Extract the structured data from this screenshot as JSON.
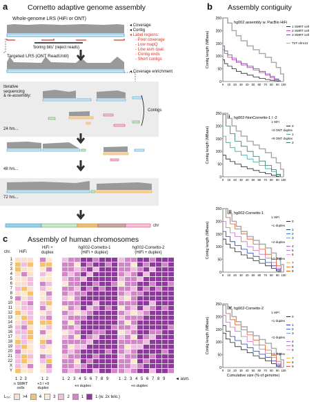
{
  "panel_a": {
    "letter": "a",
    "title": "Cornetto adaptive genome assembly",
    "wg_label": "Whole-genome LRS (HiFi or ONT)",
    "legend": {
      "coverage": "Coverage",
      "contig": "Contig",
      "label_regions": "Label regions:",
      "items": [
        "Poor coverage",
        "Low mapQ",
        "Low asm qual.",
        "Contig ends",
        "Short contigs"
      ],
      "enrichment": "Coverage enrichment"
    },
    "boring": "'boring bits' (reject reads)",
    "targeted": "Targeted LRS (ONT ReadUntil)",
    "iterative": "Iterative\nsequencing\n& re-assembly:",
    "contigs": "Contigs",
    "times": [
      "24 hrs...",
      "48 hrs...",
      "72 hrs..."
    ],
    "chr": "chr"
  },
  "panel_b": {
    "letter": "b",
    "title": "Assembly contiguity",
    "ylabel": "Contig length (MBase)",
    "xlabel": "Cumulative size (% of genome)"
  },
  "panel_c": {
    "letter": "c",
    "title": "Assembly of human chromosomes",
    "chr_label": "chr.",
    "col_headers": [
      "HiFi",
      "HiFi +\nduplex",
      "hg002-Cornetto-1\n(HiFi + duplex)",
      "hg002-Cornetto-2\n(HiFi + duplex)"
    ],
    "rows": [
      "1",
      "2",
      "3",
      "4",
      "5",
      "6",
      "7",
      "8",
      "9",
      "10",
      "11",
      "12",
      "13",
      "14",
      "15",
      "16",
      "17",
      "18",
      "19",
      "20",
      "21",
      "22",
      "X",
      "Y"
    ],
    "asm": "◄ asm.",
    "nsmrt": "n SMRT\ncells",
    "plus_duplex": "+3 / +9\nduplex",
    "n_duplex": "+n duplex",
    "legend_label": "L₅₀:",
    "legend": [
      ">4",
      "4",
      "3",
      "2",
      "1",
      "1 (w. 2x telo.)"
    ],
    "legend_colors": [
      "#fbe0cf",
      "#f7c26a",
      "#fce9d0",
      "#f2bde0",
      "#d286c8",
      "#8e3a9c"
    ]
  },
  "chart_data": [
    {
      "type": "line",
      "title": "hg002 assembly w. PacBio HiFi",
      "panel": "i",
      "xlabel": "Cumulative size (% of genome)",
      "ylabel": "Contig length (MBase)",
      "xlim": [
        0,
        100
      ],
      "ylim": [
        0,
        250
      ],
      "legend_position": "right",
      "series": [
        {
          "name": "1 SMRT cell",
          "color": "#222222",
          "x": [
            0,
            3,
            8,
            15,
            22,
            30,
            40,
            50,
            60,
            70,
            78,
            85,
            90,
            92
          ],
          "y": [
            85,
            70,
            60,
            50,
            40,
            32,
            25,
            18,
            12,
            8,
            5,
            3,
            1,
            0
          ]
        },
        {
          "name": "2 SMRT cell",
          "color": "#c73aa0",
          "x": [
            0,
            3,
            8,
            15,
            22,
            30,
            40,
            50,
            60,
            70,
            78,
            85,
            92,
            95
          ],
          "y": [
            125,
            110,
            95,
            85,
            75,
            65,
            55,
            45,
            35,
            25,
            15,
            8,
            2,
            0
          ]
        },
        {
          "name": "3 SMRT cell",
          "color": "#6a3fa6",
          "x": [
            0,
            3,
            8,
            15,
            22,
            30,
            40,
            50,
            60,
            70,
            78,
            85,
            92,
            95
          ],
          "y": [
            140,
            120,
            105,
            92,
            80,
            70,
            60,
            50,
            40,
            30,
            20,
            10,
            3,
            0
          ]
        },
        {
          "name": "T2T-chm13",
          "color": "#aaaaaa",
          "x": [
            0,
            8,
            15,
            22,
            30,
            40,
            50,
            60,
            70,
            80,
            88,
            95,
            100
          ],
          "y": [
            250,
            230,
            200,
            180,
            160,
            140,
            125,
            110,
            95,
            75,
            55,
            30,
            0
          ]
        }
      ]
    },
    {
      "type": "line",
      "title": "hg002-NonCornetto-1 / -2",
      "panel": "ii",
      "xlim": [
        0,
        100
      ],
      "ylim": [
        0,
        250
      ],
      "legend_position": "right",
      "series": [
        {
          "name": "0",
          "color": "#222222",
          "x": [
            0,
            5,
            12,
            20,
            30,
            40,
            50,
            60,
            70,
            80,
            88,
            92
          ],
          "y": [
            85,
            70,
            60,
            50,
            40,
            32,
            25,
            18,
            12,
            6,
            2,
            0
          ]
        },
        {
          "name": "1",
          "color": "#3aa8a0",
          "x": [
            0,
            5,
            12,
            20,
            30,
            40,
            50,
            60,
            70,
            80,
            88,
            94
          ],
          "y": [
            160,
            135,
            115,
            100,
            85,
            70,
            58,
            45,
            32,
            20,
            8,
            0
          ]
        },
        {
          "name": "2",
          "color": "#2e7a5a",
          "x": [
            0,
            5,
            12,
            20,
            30,
            40,
            50,
            60,
            70,
            80,
            88,
            95
          ],
          "y": [
            245,
            200,
            170,
            140,
            120,
            100,
            80,
            62,
            45,
            28,
            10,
            0
          ]
        },
        {
          "name": "T2T-chm13",
          "color": "#aaaaaa",
          "x": [
            0,
            8,
            15,
            22,
            30,
            40,
            50,
            60,
            70,
            80,
            88,
            95,
            100
          ],
          "y": [
            250,
            230,
            200,
            180,
            160,
            140,
            125,
            110,
            95,
            75,
            55,
            30,
            0
          ]
        }
      ]
    },
    {
      "type": "line",
      "title": "hg002-Cornetto-1",
      "panel": "iii",
      "xlim": [
        0,
        100
      ],
      "ylim": [
        0,
        250
      ],
      "legend_position": "right",
      "series": [
        {
          "name": "0",
          "color": "#222222",
          "x": [
            0,
            5,
            12,
            20,
            30,
            40,
            50,
            60,
            70,
            80,
            88,
            92
          ],
          "y": [
            130,
            110,
            95,
            80,
            68,
            55,
            45,
            35,
            25,
            15,
            5,
            0
          ]
        },
        {
          "name": "1",
          "color": "#1f3fa0",
          "x": [
            0,
            5,
            12,
            20,
            30,
            40,
            50,
            60,
            70,
            80,
            88,
            94
          ],
          "y": [
            160,
            140,
            120,
            105,
            90,
            75,
            62,
            50,
            38,
            25,
            10,
            0
          ]
        },
        {
          "name": "5",
          "color": "#c56fc0",
          "x": [
            0,
            5,
            12,
            20,
            30,
            40,
            50,
            60,
            70,
            80,
            88,
            95
          ],
          "y": [
            200,
            175,
            155,
            140,
            120,
            100,
            85,
            70,
            55,
            38,
            15,
            0
          ]
        },
        {
          "name": "9",
          "color": "#e8531e",
          "x": [
            0,
            5,
            12,
            20,
            30,
            40,
            50,
            60,
            70,
            80,
            88,
            96
          ],
          "y": [
            250,
            215,
            190,
            170,
            150,
            130,
            110,
            90,
            70,
            50,
            25,
            0
          ]
        },
        {
          "name": "T2T-chm13",
          "color": "#aaaaaa",
          "x": [
            0,
            8,
            15,
            22,
            30,
            40,
            50,
            60,
            70,
            80,
            88,
            95,
            100
          ],
          "y": [
            250,
            230,
            200,
            180,
            160,
            140,
            125,
            110,
            95,
            75,
            55,
            30,
            0
          ]
        }
      ]
    },
    {
      "type": "line",
      "title": "hg002-Cornetto-2",
      "panel": "iv",
      "xlim": [
        0,
        100
      ],
      "ylim": [
        0,
        250
      ],
      "legend_position": "right",
      "series": [
        {
          "name": "0",
          "color": "#222222",
          "x": [
            0,
            5,
            12,
            20,
            30,
            40,
            50,
            60,
            70,
            80,
            88,
            92
          ],
          "y": [
            135,
            112,
            98,
            82,
            70,
            58,
            46,
            36,
            26,
            15,
            5,
            0
          ]
        },
        {
          "name": "1",
          "color": "#1f3fa0",
          "x": [
            0,
            5,
            12,
            20,
            30,
            40,
            50,
            60,
            70,
            80,
            88,
            94
          ],
          "y": [
            165,
            142,
            122,
            106,
            92,
            78,
            64,
            52,
            40,
            26,
            10,
            0
          ]
        },
        {
          "name": "5",
          "color": "#c56fc0",
          "x": [
            0,
            5,
            12,
            20,
            30,
            40,
            50,
            60,
            70,
            80,
            88,
            95
          ],
          "y": [
            205,
            178,
            158,
            142,
            122,
            102,
            88,
            72,
            56,
            40,
            16,
            0
          ]
        },
        {
          "name": "9",
          "color": "#e8531e",
          "x": [
            0,
            5,
            12,
            20,
            30,
            40,
            50,
            60,
            70,
            80,
            88,
            96
          ],
          "y": [
            245,
            212,
            188,
            168,
            148,
            128,
            108,
            88,
            68,
            48,
            24,
            0
          ]
        },
        {
          "name": "T2T-chm13",
          "color": "#aaaaaa",
          "x": [
            0,
            8,
            15,
            22,
            30,
            40,
            50,
            60,
            70,
            80,
            88,
            95,
            100
          ],
          "y": [
            250,
            230,
            200,
            180,
            160,
            140,
            125,
            110,
            95,
            75,
            55,
            30,
            0
          ]
        }
      ]
    }
  ],
  "chart_text": [
    {
      "roman": "i",
      "legend": [
        {
          "t": "1 SMRT cell",
          "c": "#222222"
        },
        {
          "t": "2 SMRT cell",
          "c": "#c73aa0"
        },
        {
          "t": "3 SMRT cell",
          "c": "#6a3fa6"
        },
        {
          "t": "",
          "c": ""
        },
        {
          "t": "T2T-chm13",
          "c": "#aaaaaa"
        }
      ]
    },
    {
      "roman": "ii",
      "legend": [
        {
          "t": "1 HiFi",
          "c": ""
        },
        {
          "t": "0",
          "c": "#222222"
        },
        {
          "t": "+3 ONT duplex",
          "c": ""
        },
        {
          "t": "1",
          "c": "#3aa8a0"
        },
        {
          "t": "+9 ONT duplex",
          "c": ""
        },
        {
          "t": "2",
          "c": "#2e7a5a"
        }
      ]
    },
    {
      "roman": "iii",
      "legend": [
        {
          "t": "1 HiFi",
          "c": ""
        },
        {
          "t": "0",
          "c": "#222222"
        },
        {
          "t": "+1 duplex",
          "c": ""
        },
        {
          "t": "1",
          "c": "#1f3fa0"
        },
        {
          "t": "2",
          "c": "#3a6bd0"
        },
        {
          "t": "3",
          "c": "#6aa3e0"
        },
        {
          "t": "+2 duplex",
          "c": ""
        },
        {
          "t": "4",
          "c": "#a06ed6"
        },
        {
          "t": "5",
          "c": "#c56fc0"
        },
        {
          "t": "6",
          "c": "#e2a6dc"
        },
        {
          "t": "+3 duplex",
          "c": ""
        },
        {
          "t": "7",
          "c": "#f5b85a"
        },
        {
          "t": "8",
          "c": "#ec8a2e"
        },
        {
          "t": "9",
          "c": "#e8531e"
        }
      ]
    },
    {
      "roman": "iv",
      "legend": [
        {
          "t": "1 HiFi",
          "c": ""
        },
        {
          "t": "0",
          "c": "#222222"
        },
        {
          "t": "+1 duplex",
          "c": ""
        },
        {
          "t": "1",
          "c": "#1f3fa0"
        },
        {
          "t": "2",
          "c": "#3a6bd0"
        },
        {
          "t": "3",
          "c": "#6aa3e0"
        },
        {
          "t": "+2 duplex",
          "c": ""
        },
        {
          "t": "4",
          "c": "#a06ed6"
        },
        {
          "t": "5",
          "c": "#c56fc0"
        },
        {
          "t": "6",
          "c": "#e2a6dc"
        },
        {
          "t": "+3 duplex",
          "c": ""
        },
        {
          "t": "7",
          "c": "#f5b85a"
        },
        {
          "t": "8",
          "c": "#ec8a2e"
        },
        {
          "t": "9",
          "c": "#e8531e"
        }
      ]
    }
  ],
  "yticks": [
    "250",
    "200",
    "150",
    "100",
    "50",
    "0"
  ],
  "xticks": [
    "0",
    "10",
    "20",
    "30",
    "40",
    "50",
    "60",
    "70",
    "80",
    "90",
    "100"
  ]
}
